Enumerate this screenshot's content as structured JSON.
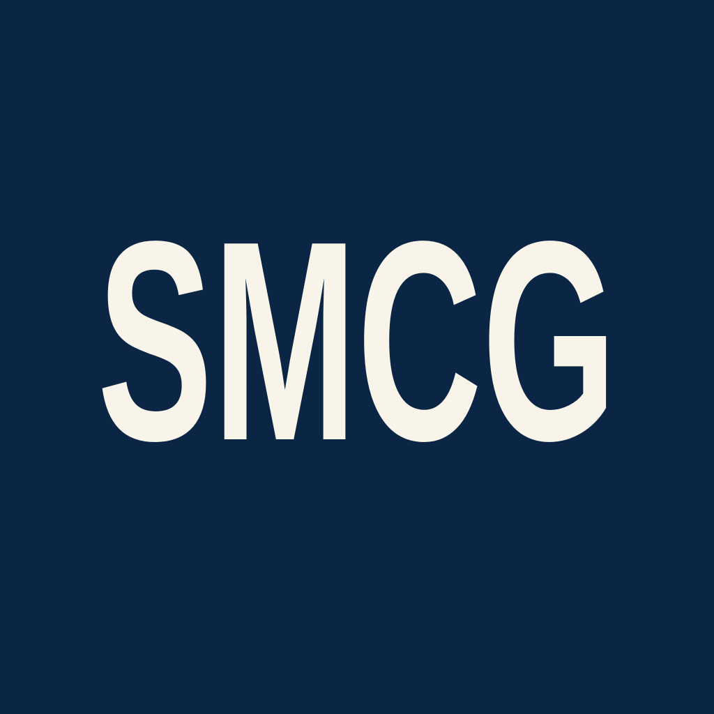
{
  "logo": {
    "text": "SMCG",
    "background_color": "#0b2645",
    "text_color": "#f8f4ea"
  }
}
